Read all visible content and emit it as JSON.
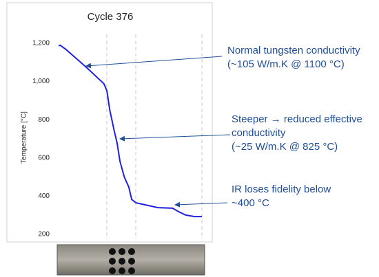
{
  "chart_data": {
    "type": "line",
    "title": "Cycle 376",
    "y_label": "Temperature [°C]",
    "x": [
      1,
      2,
      6,
      13,
      20,
      27,
      32,
      34,
      36,
      39,
      41,
      43,
      46,
      49,
      51,
      54,
      60,
      69,
      79,
      83,
      88,
      94,
      99
    ],
    "xlim": [
      0,
      100
    ],
    "series": [
      {
        "color": "#1f1fe0",
        "values": [
          1186,
          1190,
          1168,
          1121,
          1074,
          1024,
          988,
          952,
          851,
          743,
          678,
          581,
          499,
          448,
          383,
          365,
          355,
          340,
          337,
          319,
          301,
          293,
          293
        ]
      }
    ],
    "ylim": [
      200,
      1200
    ],
    "yticks": [
      {
        "value": 200,
        "label": "200"
      },
      {
        "value": 400,
        "label": "400"
      },
      {
        "value": 600,
        "label": "600"
      },
      {
        "value": 800,
        "label": "800"
      },
      {
        "value": 1000,
        "label": "1,000"
      },
      {
        "value": 1200,
        "label": "1,200"
      }
    ],
    "annotations": [
      {
        "lines": [
          "Normal tungsten conductivity",
          "(~105 W/m.K @ 1100 °C)"
        ]
      },
      {
        "lines": [
          "Steeper → reduced effective",
          "conductivity",
          "(~25 W/m.K @ 825 °C)"
        ]
      },
      {
        "lines": [
          "IR loses fidelity below",
          "~400 °C"
        ]
      }
    ]
  }
}
